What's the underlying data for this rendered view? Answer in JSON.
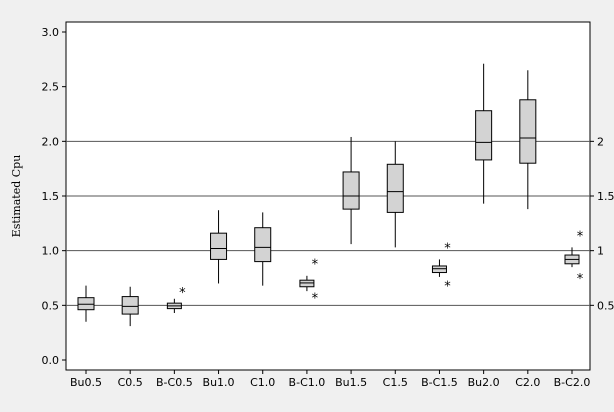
{
  "chart_data": {
    "type": "boxplot",
    "title": "",
    "xlabel": "",
    "ylabel": "Estimated Cpu",
    "ylim": [
      0.0,
      3.0
    ],
    "yticks": [
      "0.0",
      "0.5",
      "1.0",
      "1.5",
      "2.0",
      "2.5",
      "3.0"
    ],
    "right_ticks": [
      {
        "value": 0.5,
        "label": "0.5"
      },
      {
        "value": 1.0,
        "label": "1"
      },
      {
        "value": 1.5,
        "label": "1.5"
      },
      {
        "value": 2.0,
        "label": "2"
      }
    ],
    "reference_lines": [
      0.5,
      1.0,
      1.5,
      2.0
    ],
    "box_fill": "#d3d3d3",
    "line_color": "#000000",
    "categories": [
      "Bu0.5",
      "C0.5",
      "B-C0.5",
      "Bu1.0",
      "C1.0",
      "B-C1.0",
      "Bu1.5",
      "C1.5",
      "B-C1.5",
      "Bu2.0",
      "C2.0",
      "B-C2.0"
    ],
    "boxes": [
      {
        "label": "Bu0.5",
        "whisker_low": 0.35,
        "q1": 0.46,
        "median": 0.51,
        "q3": 0.57,
        "whisker_high": 0.68,
        "outliers": []
      },
      {
        "label": "C0.5",
        "whisker_low": 0.31,
        "q1": 0.42,
        "median": 0.49,
        "q3": 0.58,
        "whisker_high": 0.67,
        "outliers": []
      },
      {
        "label": "B-C0.5",
        "whisker_low": 0.43,
        "q1": 0.47,
        "median": 0.495,
        "q3": 0.52,
        "whisker_high": 0.56,
        "outliers": [
          0.63
        ]
      },
      {
        "label": "Bu1.0",
        "whisker_low": 0.7,
        "q1": 0.92,
        "median": 1.02,
        "q3": 1.16,
        "whisker_high": 1.37,
        "outliers": []
      },
      {
        "label": "C1.0",
        "whisker_low": 0.68,
        "q1": 0.9,
        "median": 1.03,
        "q3": 1.21,
        "whisker_high": 1.35,
        "outliers": []
      },
      {
        "label": "B-C1.0",
        "whisker_low": 0.63,
        "q1": 0.67,
        "median": 0.705,
        "q3": 0.73,
        "whisker_high": 0.77,
        "outliers": [
          0.58,
          0.89
        ]
      },
      {
        "label": "Bu1.5",
        "whisker_low": 1.06,
        "q1": 1.38,
        "median": 1.5,
        "q3": 1.72,
        "whisker_high": 2.04,
        "outliers": []
      },
      {
        "label": "C1.5",
        "whisker_low": 1.03,
        "q1": 1.35,
        "median": 1.54,
        "q3": 1.79,
        "whisker_high": 2.0,
        "outliers": []
      },
      {
        "label": "B-C1.5",
        "whisker_low": 0.76,
        "q1": 0.8,
        "median": 0.835,
        "q3": 0.86,
        "whisker_high": 0.92,
        "outliers": [
          0.69,
          1.04
        ]
      },
      {
        "label": "Bu2.0",
        "whisker_low": 1.43,
        "q1": 1.83,
        "median": 1.99,
        "q3": 2.28,
        "whisker_high": 2.71,
        "outliers": []
      },
      {
        "label": "C2.0",
        "whisker_low": 1.38,
        "q1": 1.8,
        "median": 2.03,
        "q3": 2.38,
        "whisker_high": 2.65,
        "outliers": []
      },
      {
        "label": "B-C2.0",
        "whisker_low": 0.85,
        "q1": 0.88,
        "median": 0.92,
        "q3": 0.96,
        "whisker_high": 1.03,
        "outliers": [
          0.76,
          1.15
        ]
      }
    ],
    "grid": false,
    "legend": "none"
  }
}
